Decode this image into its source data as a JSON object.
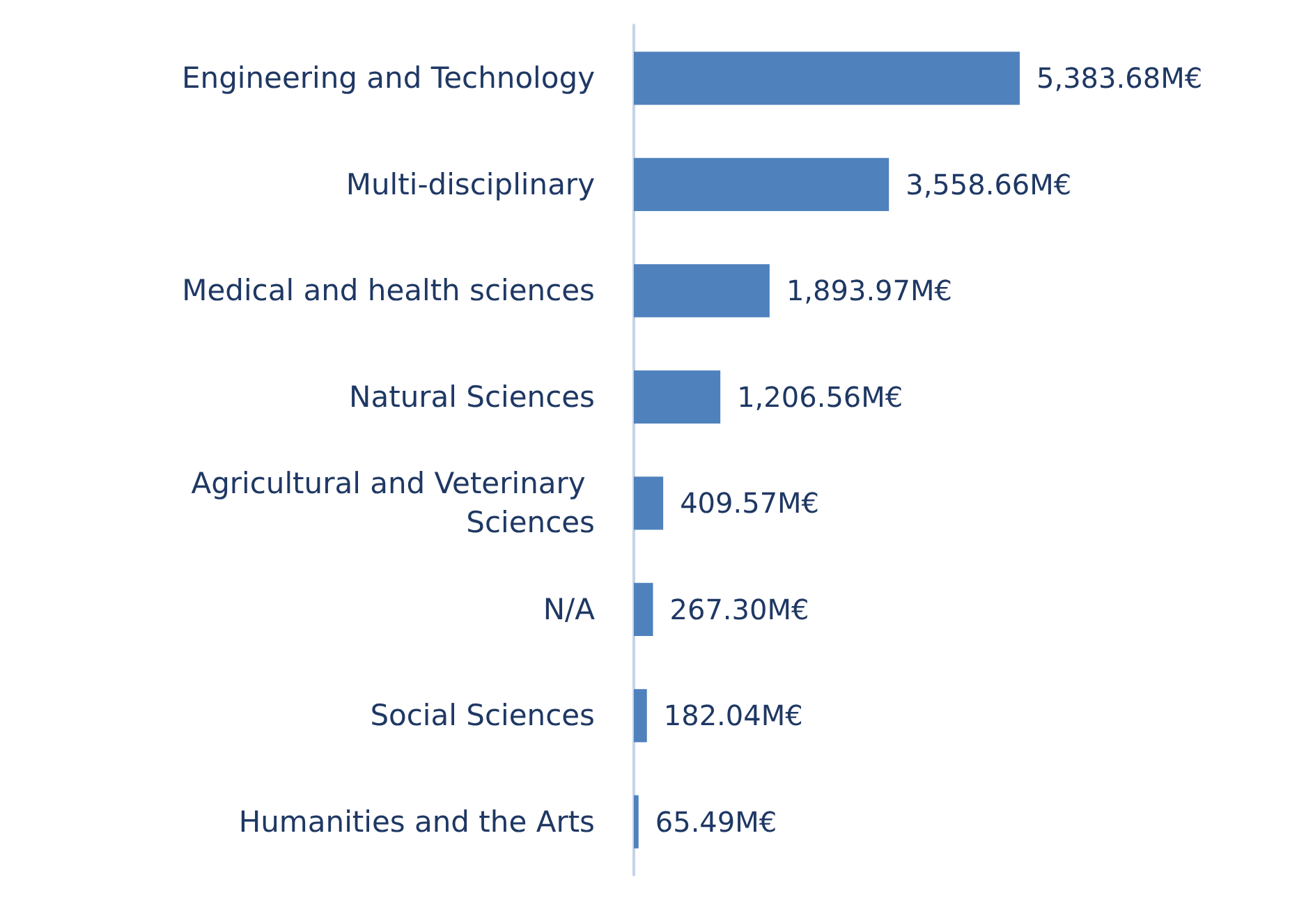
{
  "chart_data": {
    "type": "bar",
    "orientation": "horizontal",
    "categories": [
      "Engineering and Technology",
      "Multi-disciplinary",
      "Medical and health sciences",
      "Natural Sciences",
      "Agricultural and Veterinary Sciences",
      "N/A",
      "Social Sciences",
      "Humanities and the Arts"
    ],
    "values": [
      5383.68,
      3558.66,
      1893.97,
      1206.56,
      409.57,
      267.3,
      182.04,
      65.49
    ],
    "value_labels": [
      "5,383.68M€",
      "3,558.66M€",
      "1,893.97M€",
      "1,206.56M€",
      "409.57M€",
      "267.30M€",
      "182.04M€",
      "65.49M€"
    ],
    "color": "#4f81bd"
  }
}
